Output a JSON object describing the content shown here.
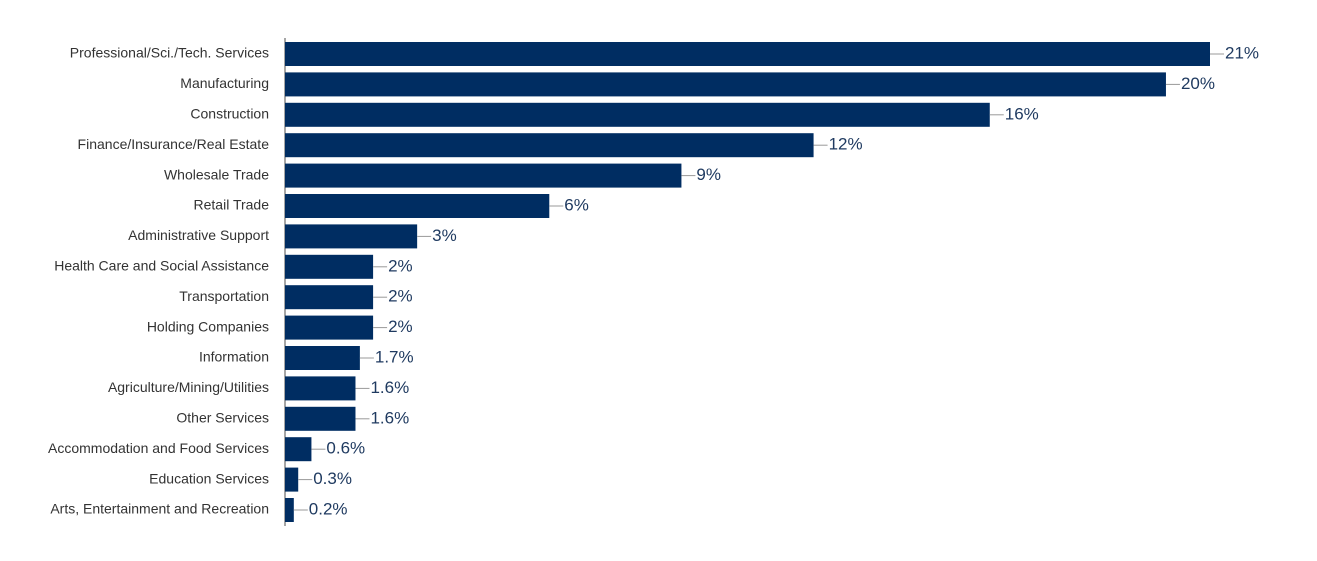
{
  "chart_data": {
    "type": "bar",
    "orientation": "horizontal",
    "color": "#002d62",
    "categories": [
      "Professional/Sci./Tech. Services",
      "Manufacturing",
      "Construction",
      "Finance/Insurance/Real Estate",
      "Wholesale Trade",
      "Retail Trade",
      "Administrative Support",
      "Health Care and Social Assistance",
      "Transportation",
      "Holding Companies",
      "Information",
      "Agriculture/Mining/Utilities",
      "Other Services",
      "Accommodation and Food Services",
      "Education Services",
      "Arts, Entertainment and Recreation"
    ],
    "values": [
      21,
      20,
      16,
      12,
      9,
      6,
      3,
      2,
      2,
      2,
      1.7,
      1.6,
      1.6,
      0.6,
      0.3,
      0.2
    ],
    "value_labels": [
      "21%",
      "20%",
      "16%",
      "12%",
      "9%",
      "6%",
      "3%",
      "2%",
      "2%",
      "2%",
      "1.7%",
      "1.6%",
      "1.6%",
      "0.6%",
      "0.3%",
      "0.2%"
    ]
  }
}
